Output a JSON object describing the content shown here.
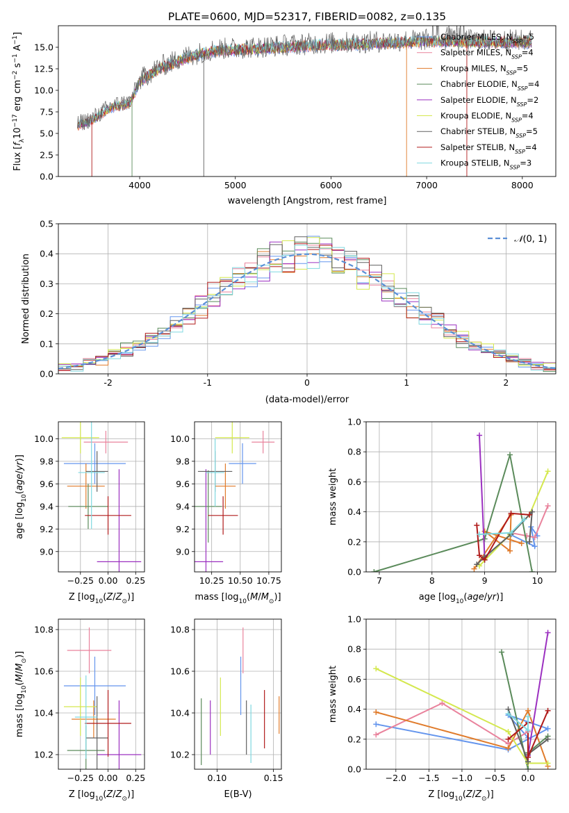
{
  "figure_title": "PLATE=0600, MJD=52317, FIBERID=0082, z=0.135",
  "colors": {
    "c0": "#1f77b4",
    "miles_chabrier": "#6495ed",
    "miles_salpeter": "#e9829c",
    "miles_kroupa": "#e07b2b",
    "elodie_chabrier": "#5a8a5a",
    "elodie_salpeter": "#9b30c0",
    "elodie_kroupa": "#d4e84e",
    "stelib_chabrier": "#606060",
    "stelib_salpeter": "#b01a1a",
    "stelib_kroupa": "#7fd8e0",
    "grid": "#b0b0b0",
    "gauss": "#5b8fd6"
  },
  "chart_data": [
    {
      "id": "spectrum",
      "type": "line",
      "title": "PLATE=0600, MJD=52317, FIBERID=0082, z=0.135",
      "xlabel": "wavelength [Angstrom, rest frame]",
      "ylabel": "Flux [f_λ 10^-17 erg cm^-2 s^-1 A^-1]",
      "xlim": [
        3150,
        8350
      ],
      "ylim": [
        0,
        17.5
      ],
      "xticks": [
        4000,
        5000,
        6000,
        7000,
        8000
      ],
      "yticks": [
        0.0,
        2.5,
        5.0,
        7.5,
        10.0,
        12.5,
        15.0
      ],
      "grid": false,
      "legend_position": "top-right",
      "continuum": {
        "x": [
          3350,
          3500,
          3700,
          3900,
          4000,
          4200,
          4500,
          4800,
          5200,
          5600,
          6000,
          6400,
          6800,
          7200,
          7600,
          8000,
          8100
        ],
        "y": [
          5.9,
          6.5,
          8.0,
          8.5,
          11.0,
          12.5,
          13.8,
          14.6,
          14.8,
          15.1,
          15.3,
          15.4,
          15.6,
          15.7,
          15.6,
          15.6,
          15.6
        ]
      },
      "series": [
        {
          "name": "Chabrier MILES, N_SSP=5",
          "label_main": "Chabrier MILES, N",
          "label_sub": "SSP",
          "label_end": "=5",
          "color_key": "miles_chabrier"
        },
        {
          "name": "Salpeter MILES, N_SSP=4",
          "label_main": "Salpeter MILES, N",
          "label_sub": "SSP",
          "label_end": "=4",
          "color_key": "miles_salpeter"
        },
        {
          "name": "Kroupa MILES, N_SSP=5",
          "label_main": "Kroupa MILES, N",
          "label_sub": "SSP",
          "label_end": "=5",
          "color_key": "miles_kroupa"
        },
        {
          "name": "Chabrier ELODIE, N_SSP=4",
          "label_main": "Chabrier ELODIE, N",
          "label_sub": "SSP",
          "label_end": "=4",
          "color_key": "elodie_chabrier"
        },
        {
          "name": "Salpeter ELODIE, N_SSP=2",
          "label_main": "Salpeter ELODIE, N",
          "label_sub": "SSP",
          "label_end": "=2",
          "color_key": "elodie_salpeter"
        },
        {
          "name": "Kroupa ELODIE, N_SSP=4",
          "label_main": "Kroupa ELODIE, N",
          "label_sub": "SSP",
          "label_end": "=4",
          "color_key": "elodie_kroupa"
        },
        {
          "name": "Chabrier STELIB, N_SSP=5",
          "label_main": "Chabrier STELIB, N",
          "label_sub": "SSP",
          "label_end": "=5",
          "color_key": "stelib_chabrier"
        },
        {
          "name": "Salpeter STELIB, N_SSP=4",
          "label_main": "Salpeter STELIB, N",
          "label_sub": "SSP",
          "label_end": "=4",
          "color_key": "stelib_salpeter"
        },
        {
          "name": "Kroupa STELIB, N_SSP=3",
          "label_main": "Kroupa STELIB, N",
          "label_sub": "SSP",
          "label_end": "=3",
          "color_key": "stelib_kroupa"
        }
      ],
      "spikes": [
        {
          "x": 3500,
          "color_key": "stelib_salpeter"
        },
        {
          "x": 3920,
          "color_key": "elodie_chabrier"
        },
        {
          "x": 4670,
          "color_key": "stelib_chabrier"
        },
        {
          "x": 6790,
          "color_key": "miles_kroupa"
        },
        {
          "x": 7420,
          "color_key": "stelib_salpeter"
        }
      ]
    },
    {
      "id": "residuals",
      "type": "line",
      "title": "",
      "xlabel": "(data-model)/error",
      "ylabel": "Normed distribution",
      "xlim": [
        -2.5,
        2.5
      ],
      "ylim": [
        0,
        0.5
      ],
      "xticks": [
        -2,
        -1,
        0,
        1,
        2
      ],
      "yticks": [
        0.0,
        0.1,
        0.2,
        0.3,
        0.4,
        0.5
      ],
      "grid": true,
      "legend_position": "top-right",
      "legend_label": "N(0, 1)",
      "gaussian": {
        "mean": 0,
        "sigma": 1,
        "name": "N(0, 1)"
      },
      "histogram": {
        "bins": 40,
        "range": [
          -2.5,
          2.5
        ]
      }
    },
    {
      "id": "age_vs_Z",
      "type": "scatter",
      "title": "",
      "xlabel": "Z [log10(Z/Z_sun)]",
      "ylabel": "age [log10(age/yr)]",
      "xlim": [
        -0.45,
        0.33
      ],
      "ylim": [
        8.82,
        10.15
      ],
      "xticks": [
        -0.25,
        0.0,
        0.25
      ],
      "xtick_labels": [
        "−0.25",
        "0.00",
        "0.25"
      ],
      "yticks": [
        9.0,
        9.2,
        9.4,
        9.6,
        9.8,
        10.0
      ],
      "ytick_labels": [
        "9.0",
        "9.2",
        "9.4",
        "9.6",
        "9.8",
        "10.0"
      ],
      "grid": true,
      "points": [
        {
          "x": -0.12,
          "xerr": 0.28,
          "y": 9.78,
          "yerr": 0.18,
          "color_key": "miles_chabrier"
        },
        {
          "x": -0.02,
          "xerr": 0.2,
          "y": 9.97,
          "yerr": 0.1,
          "color_key": "miles_salpeter"
        },
        {
          "x": -0.2,
          "xerr": 0.17,
          "y": 9.58,
          "yerr": 0.2,
          "color_key": "miles_kroupa"
        },
        {
          "x": -0.18,
          "xerr": 0.18,
          "y": 9.4,
          "yerr": 0.2,
          "color_key": "elodie_chabrier"
        },
        {
          "x": 0.1,
          "xerr": 0.2,
          "y": 8.91,
          "yerr": 0.82,
          "color_key": "elodie_salpeter"
        },
        {
          "x": -0.25,
          "xerr": 0.17,
          "y": 10.01,
          "yerr": 0.14,
          "color_key": "elodie_kroupa"
        },
        {
          "x": -0.1,
          "xerr": 0.1,
          "y": 9.71,
          "yerr": 0.18,
          "color_key": "stelib_chabrier"
        },
        {
          "x": 0.0,
          "xerr": 0.21,
          "y": 9.32,
          "yerr": 0.17,
          "color_key": "stelib_salpeter"
        },
        {
          "x": -0.15,
          "xerr": 0.12,
          "y": 9.7,
          "yerr": 0.5,
          "color_key": "stelib_kroupa"
        }
      ]
    },
    {
      "id": "age_vs_mass",
      "type": "scatter",
      "title": "",
      "xlabel": "mass [log10(M/M_sun)]",
      "ylabel": "",
      "xlim": [
        10.1,
        10.86
      ],
      "ylim": [
        8.82,
        10.15
      ],
      "xticks": [
        10.25,
        10.5,
        10.75
      ],
      "xtick_labels": [
        "10.25",
        "10.50",
        "10.75"
      ],
      "yticks": [
        9.0,
        9.2,
        9.4,
        9.6,
        9.8,
        10.0
      ],
      "ytick_labels": [
        "9.0",
        "9.2",
        "9.4",
        "9.6",
        "9.8",
        "10.0"
      ],
      "grid": true,
      "points": [
        {
          "x": 10.52,
          "xerr": 0.12,
          "y": 9.78,
          "yerr": 0.18,
          "color_key": "miles_chabrier"
        },
        {
          "x": 10.7,
          "xerr": 0.1,
          "y": 9.97,
          "yerr": 0.1,
          "color_key": "miles_salpeter"
        },
        {
          "x": 10.37,
          "xerr": 0.09,
          "y": 9.58,
          "yerr": 0.2,
          "color_key": "miles_kroupa"
        },
        {
          "x": 10.22,
          "xerr": 0.12,
          "y": 9.4,
          "yerr": 0.32,
          "color_key": "elodie_chabrier"
        },
        {
          "x": 10.2,
          "xerr": 0.15,
          "y": 8.91,
          "yerr": 0.82,
          "color_key": "elodie_salpeter"
        },
        {
          "x": 10.43,
          "xerr": 0.15,
          "y": 10.01,
          "yerr": 0.14,
          "color_key": "elodie_kroupa"
        },
        {
          "x": 10.28,
          "xerr": 0.15,
          "y": 9.71,
          "yerr": 0.18,
          "color_key": "stelib_chabrier"
        },
        {
          "x": 10.35,
          "xerr": 0.13,
          "y": 9.32,
          "yerr": 0.17,
          "color_key": "stelib_salpeter"
        },
        {
          "x": 10.28,
          "xerr": 0.08,
          "y": 9.7,
          "yerr": 0.3,
          "color_key": "stelib_kroupa"
        }
      ]
    },
    {
      "id": "weight_vs_age",
      "type": "line",
      "title": "",
      "xlabel": "age [log10(age/yr)]",
      "ylabel": "mass weight",
      "xlim": [
        6.75,
        10.35
      ],
      "ylim": [
        0,
        1
      ],
      "xticks": [
        7,
        8,
        9,
        10
      ],
      "xtick_labels": [
        "7",
        "8",
        "9",
        "10"
      ],
      "yticks": [
        0.0,
        0.2,
        0.4,
        0.6,
        0.8,
        1.0
      ],
      "ytick_labels": [
        "0.0",
        "0.2",
        "0.4",
        "0.6",
        "0.8",
        "1.0"
      ],
      "grid": true,
      "series": [
        {
          "color_key": "miles_chabrier",
          "x": [
            9.0,
            9.48,
            9.95,
            9.88,
            10.0
          ],
          "y": [
            0.08,
            0.25,
            0.17,
            0.3,
            0.24
          ]
        },
        {
          "color_key": "miles_salpeter",
          "x": [
            9.5,
            9.8,
            9.95,
            10.2
          ],
          "y": [
            0.26,
            0.24,
            0.23,
            0.44
          ]
        },
        {
          "color_key": "miles_kroupa",
          "x": [
            8.8,
            9.5,
            9.48,
            9.0,
            9.7
          ],
          "y": [
            0.02,
            0.38,
            0.14,
            0.27,
            0.19
          ]
        },
        {
          "color_key": "elodie_chabrier",
          "x": [
            6.9,
            9.0,
            9.48,
            9.9
          ],
          "y": [
            0.0,
            0.22,
            0.78,
            0.0
          ]
        },
        {
          "color_key": "elodie_salpeter",
          "x": [
            8.9,
            9.0
          ],
          "y": [
            0.91,
            0.09
          ]
        },
        {
          "color_key": "elodie_kroupa",
          "x": [
            8.9,
            9.48,
            9.85,
            10.2
          ],
          "y": [
            0.04,
            0.25,
            0.38,
            0.67
          ]
        },
        {
          "color_key": "stelib_chabrier",
          "x": [
            8.85,
            9.0,
            9.5,
            9.9,
            9.85
          ],
          "y": [
            0.05,
            0.1,
            0.25,
            0.4,
            0.2
          ]
        },
        {
          "color_key": "stelib_salpeter",
          "x": [
            8.85,
            8.9,
            9.0,
            9.5,
            9.85
          ],
          "y": [
            0.31,
            0.11,
            0.08,
            0.39,
            0.38
          ]
        },
        {
          "color_key": "stelib_kroupa",
          "x": [
            8.9,
            9.5,
            9.75
          ],
          "y": [
            0.25,
            0.26,
            0.35
          ]
        }
      ]
    },
    {
      "id": "mass_vs_Z",
      "type": "scatter",
      "title": "",
      "xlabel": "Z [log10(Z/Z_sun)]",
      "ylabel": "mass [log10(M/M_sun)]",
      "xlim": [
        -0.45,
        0.33
      ],
      "ylim": [
        10.13,
        10.85
      ],
      "xticks": [
        -0.25,
        0.0,
        0.25
      ],
      "xtick_labels": [
        "−0.25",
        "0.00",
        "0.25"
      ],
      "yticks": [
        10.2,
        10.4,
        10.6,
        10.8
      ],
      "ytick_labels": [
        "10.2",
        "10.4",
        "10.6",
        "10.8"
      ],
      "grid": true,
      "points": [
        {
          "x": -0.12,
          "xerr": 0.28,
          "y": 10.53,
          "yerr": 0.14,
          "color_key": "miles_chabrier"
        },
        {
          "x": -0.17,
          "xerr": 0.2,
          "y": 10.7,
          "yerr": 0.11,
          "color_key": "miles_salpeter"
        },
        {
          "x": -0.13,
          "xerr": 0.2,
          "y": 10.37,
          "yerr": 0.09,
          "color_key": "miles_kroupa"
        },
        {
          "x": -0.2,
          "xerr": 0.17,
          "y": 10.22,
          "yerr": 0.12,
          "color_key": "elodie_chabrier"
        },
        {
          "x": 0.1,
          "xerr": 0.2,
          "y": 10.2,
          "yerr": 0.26,
          "color_key": "elodie_salpeter"
        },
        {
          "x": -0.25,
          "xerr": 0.15,
          "y": 10.43,
          "yerr": 0.14,
          "color_key": "elodie_kroupa"
        },
        {
          "x": -0.1,
          "xerr": 0.1,
          "y": 10.28,
          "yerr": 0.2,
          "color_key": "stelib_chabrier"
        },
        {
          "x": 0.0,
          "xerr": 0.21,
          "y": 10.35,
          "yerr": 0.16,
          "color_key": "stelib_salpeter"
        },
        {
          "x": -0.2,
          "xerr": 0.1,
          "y": 10.38,
          "yerr": 0.2,
          "color_key": "stelib_kroupa"
        }
      ]
    },
    {
      "id": "mass_vs_ebv",
      "type": "scatter",
      "title": "",
      "xlabel": "E(B-V)",
      "ylabel": "",
      "xlim": [
        0.08,
        0.157
      ],
      "ylim": [
        10.13,
        10.85
      ],
      "xticks": [
        0.1,
        0.15
      ],
      "xtick_labels": [
        "0.10",
        "0.15"
      ],
      "yticks": [
        10.2,
        10.4,
        10.6,
        10.8
      ],
      "ytick_labels": [
        "10.2",
        "10.4",
        "10.6",
        "10.8"
      ],
      "grid": true,
      "points": [
        {
          "x": 0.121,
          "y": 10.53,
          "yerr": 0.14,
          "color_key": "miles_chabrier"
        },
        {
          "x": 0.123,
          "y": 10.7,
          "yerr": 0.11,
          "color_key": "miles_salpeter"
        },
        {
          "x": 0.155,
          "y": 10.39,
          "yerr": 0.09,
          "color_key": "miles_kroupa"
        },
        {
          "x": 0.086,
          "y": 10.31,
          "yerr": 0.16,
          "color_key": "elodie_chabrier"
        },
        {
          "x": 0.094,
          "y": 10.33,
          "yerr": 0.13,
          "color_key": "elodie_salpeter"
        },
        {
          "x": 0.103,
          "y": 10.43,
          "yerr": 0.14,
          "color_key": "elodie_kroupa"
        },
        {
          "x": 0.126,
          "y": 10.33,
          "yerr": 0.13,
          "color_key": "stelib_chabrier"
        },
        {
          "x": 0.142,
          "y": 10.37,
          "yerr": 0.14,
          "color_key": "stelib_salpeter"
        },
        {
          "x": 0.13,
          "y": 10.3,
          "yerr": 0.14,
          "color_key": "stelib_kroupa"
        }
      ]
    },
    {
      "id": "weight_vs_Z",
      "type": "line",
      "title": "",
      "xlabel": "Z [log10(Z/Z_sun)]",
      "ylabel": "mass weight",
      "xlim": [
        -2.45,
        0.42
      ],
      "ylim": [
        0,
        1
      ],
      "xticks": [
        -2.0,
        -1.5,
        -1.0,
        -0.5,
        0.0
      ],
      "xtick_labels": [
        "−2.0",
        "−1.5",
        "−1.0",
        "−0.5",
        "0.0"
      ],
      "yticks": [
        0.0,
        0.2,
        0.4,
        0.6,
        0.8,
        1.0
      ],
      "ytick_labels": [
        "0.0",
        "0.2",
        "0.4",
        "0.6",
        "0.8",
        "1.0"
      ],
      "grid": true,
      "series": [
        {
          "color_key": "miles_chabrier",
          "x": [
            -2.3,
            -0.3,
            0.3,
            -0.3,
            0.0
          ],
          "y": [
            0.3,
            0.13,
            0.27,
            0.36,
            0.21
          ]
        },
        {
          "color_key": "miles_salpeter",
          "x": [
            -2.3,
            -1.3,
            -0.3,
            0.0
          ],
          "y": [
            0.23,
            0.44,
            0.17,
            0.25
          ]
        },
        {
          "color_key": "miles_kroupa",
          "x": [
            -2.3,
            -0.3,
            0.0,
            0.3
          ],
          "y": [
            0.38,
            0.14,
            0.39,
            0.02
          ]
        },
        {
          "color_key": "elodie_chabrier",
          "x": [
            -0.4,
            0.0,
            0.0,
            0.3
          ],
          "y": [
            0.78,
            0.0,
            0.11,
            0.22
          ]
        },
        {
          "color_key": "elodie_salpeter",
          "x": [
            0.0,
            0.3
          ],
          "y": [
            0.09,
            0.91
          ]
        },
        {
          "color_key": "elodie_kroupa",
          "x": [
            -2.3,
            -0.3,
            0.0,
            0.3
          ],
          "y": [
            0.67,
            0.25,
            0.04,
            0.04
          ]
        },
        {
          "color_key": "stelib_chabrier",
          "x": [
            -0.3,
            0.0,
            0.0,
            0.3
          ],
          "y": [
            0.4,
            0.05,
            0.1,
            0.2
          ]
        },
        {
          "color_key": "stelib_salpeter",
          "x": [
            -0.3,
            0.0,
            0.0,
            0.3
          ],
          "y": [
            0.2,
            0.31,
            0.08,
            0.39
          ]
        },
        {
          "color_key": "stelib_kroupa",
          "x": [
            -0.3,
            0.0,
            0.0
          ],
          "y": [
            0.37,
            0.26,
            0.35
          ]
        }
      ]
    }
  ]
}
